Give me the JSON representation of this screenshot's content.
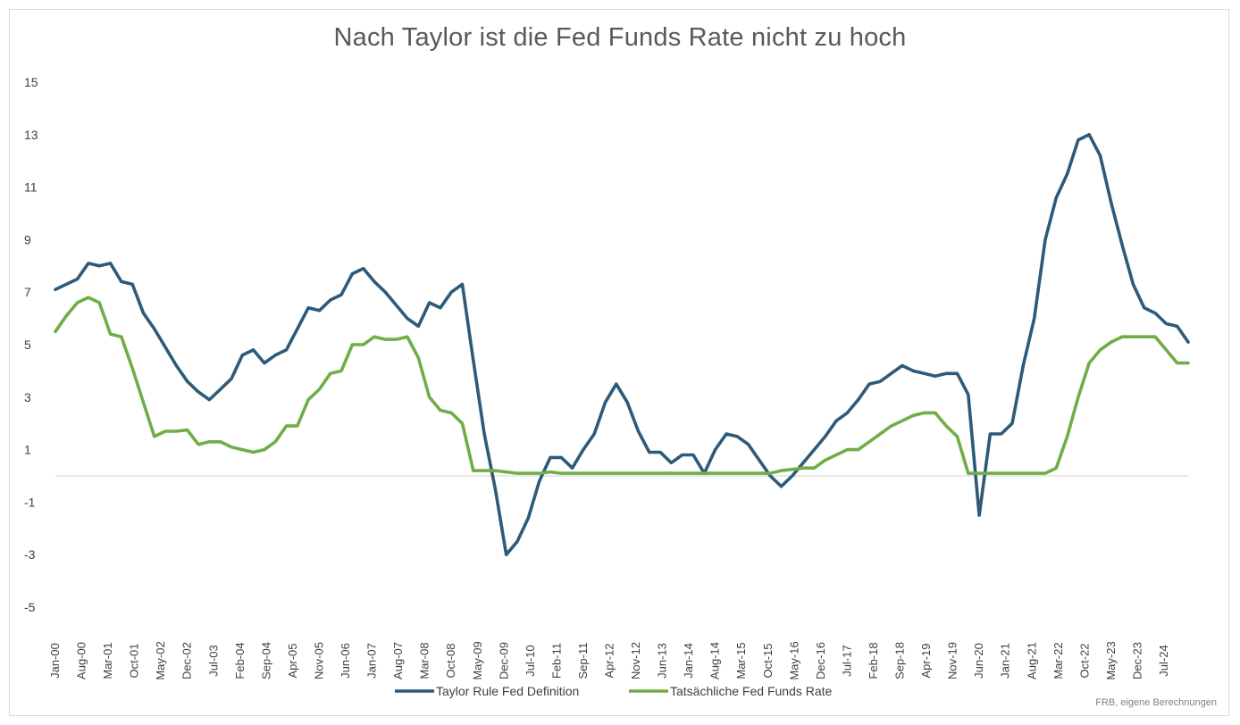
{
  "chart_data": {
    "type": "line",
    "title": "Nach Taylor ist die Fed Funds Rate nicht zu hoch",
    "source": "FRB, eigene Berechnungen",
    "xlabel": "",
    "ylabel": "",
    "ylim": [
      -5,
      15
    ],
    "yticks": [
      15,
      13,
      11,
      9,
      7,
      5,
      3,
      1,
      -1,
      -3,
      -5
    ],
    "x_tick_labels": [
      "Jan-00",
      "Aug-00",
      "Mar-01",
      "Oct-01",
      "May-02",
      "Dec-02",
      "Jul-03",
      "Feb-04",
      "Sep-04",
      "Apr-05",
      "Nov-05",
      "Jun-06",
      "Jan-07",
      "Aug-07",
      "Mar-08",
      "Oct-08",
      "May-09",
      "Dec-09",
      "Jul-10",
      "Feb-11",
      "Sep-11",
      "Apr-12",
      "Nov-12",
      "Jun-13",
      "Jan-14",
      "Aug-14",
      "Mar-15",
      "Oct-15",
      "May-16",
      "Dec-16",
      "Jul-17",
      "Feb-18",
      "Sep-18",
      "Apr-19",
      "Nov-19",
      "Jun-20",
      "Jan-21",
      "Aug-21",
      "Mar-22",
      "Oct-22",
      "May-23",
      "Dec-23",
      "Jul-24"
    ],
    "grid": false,
    "legend_position": "bottom",
    "colors": {
      "taylor": "#2e5a7a",
      "fed": "#70ad47",
      "axis": "#d9d9d9",
      "text": "#404040"
    },
    "series": [
      {
        "name": "Taylor Rule Fed Definition",
        "color": "#2e5a7a",
        "points": [
          [
            0,
            7.1
          ],
          [
            1,
            7.3
          ],
          [
            2,
            7.5
          ],
          [
            3,
            8.1
          ],
          [
            4,
            8.0
          ],
          [
            5,
            8.1
          ],
          [
            6,
            7.4
          ],
          [
            7,
            7.3
          ],
          [
            8,
            6.2
          ],
          [
            9,
            5.6
          ],
          [
            10,
            4.9
          ],
          [
            11,
            4.2
          ],
          [
            12,
            3.6
          ],
          [
            13,
            3.2
          ],
          [
            14,
            2.9
          ],
          [
            15,
            3.3
          ],
          [
            16,
            3.7
          ],
          [
            17,
            4.6
          ],
          [
            18,
            4.8
          ],
          [
            19,
            4.3
          ],
          [
            20,
            4.6
          ],
          [
            21,
            4.8
          ],
          [
            22,
            5.6
          ],
          [
            23,
            6.4
          ],
          [
            24,
            6.3
          ],
          [
            25,
            6.7
          ],
          [
            26,
            6.9
          ],
          [
            27,
            7.7
          ],
          [
            28,
            7.9
          ],
          [
            29,
            7.4
          ],
          [
            30,
            7.0
          ],
          [
            31,
            6.5
          ],
          [
            32,
            6.0
          ],
          [
            33,
            5.7
          ],
          [
            34,
            6.6
          ],
          [
            35,
            6.4
          ],
          [
            36,
            7.0
          ],
          [
            37,
            7.3
          ],
          [
            38,
            4.4
          ],
          [
            39,
            1.6
          ],
          [
            40,
            -0.5
          ],
          [
            41,
            -3.0
          ],
          [
            42,
            -2.5
          ],
          [
            43,
            -1.6
          ],
          [
            44,
            -0.2
          ],
          [
            45,
            0.7
          ],
          [
            46,
            0.7
          ],
          [
            47,
            0.3
          ],
          [
            48,
            1.0
          ],
          [
            49,
            1.6
          ],
          [
            50,
            2.8
          ],
          [
            51,
            3.5
          ],
          [
            52,
            2.8
          ],
          [
            53,
            1.7
          ],
          [
            54,
            0.9
          ],
          [
            55,
            0.9
          ],
          [
            56,
            0.5
          ],
          [
            57,
            0.8
          ],
          [
            58,
            0.8
          ],
          [
            59,
            0.1
          ],
          [
            60,
            1.0
          ],
          [
            61,
            1.6
          ],
          [
            62,
            1.5
          ],
          [
            63,
            1.2
          ],
          [
            64,
            0.6
          ],
          [
            65,
            0.0
          ],
          [
            66,
            -0.4
          ],
          [
            67,
            0.0
          ],
          [
            68,
            0.5
          ],
          [
            69,
            1.0
          ],
          [
            70,
            1.5
          ],
          [
            71,
            2.1
          ],
          [
            72,
            2.4
          ],
          [
            73,
            2.9
          ],
          [
            74,
            3.5
          ],
          [
            75,
            3.6
          ],
          [
            76,
            3.9
          ],
          [
            77,
            4.2
          ],
          [
            78,
            4.0
          ],
          [
            79,
            3.9
          ],
          [
            80,
            3.8
          ],
          [
            81,
            3.9
          ],
          [
            82,
            3.9
          ],
          [
            83,
            3.1
          ],
          [
            84,
            -1.5
          ],
          [
            85,
            1.6
          ],
          [
            86,
            1.6
          ],
          [
            87,
            2.0
          ],
          [
            88,
            4.2
          ],
          [
            89,
            6.0
          ],
          [
            90,
            9.0
          ],
          [
            91,
            10.6
          ],
          [
            92,
            11.5
          ],
          [
            93,
            12.8
          ],
          [
            94,
            13.0
          ],
          [
            95,
            12.2
          ],
          [
            96,
            10.4
          ],
          [
            97,
            8.8
          ],
          [
            98,
            7.3
          ],
          [
            99,
            6.4
          ],
          [
            100,
            6.2
          ],
          [
            101,
            5.8
          ],
          [
            102,
            5.7
          ],
          [
            103,
            5.1
          ]
        ]
      },
      {
        "name": "Tatsächliche Fed Funds Rate",
        "color": "#70ad47",
        "points": [
          [
            0,
            5.5
          ],
          [
            1,
            6.1
          ],
          [
            2,
            6.6
          ],
          [
            3,
            6.8
          ],
          [
            4,
            6.6
          ],
          [
            5,
            5.4
          ],
          [
            6,
            5.3
          ],
          [
            7,
            4.1
          ],
          [
            8,
            2.8
          ],
          [
            9,
            1.5
          ],
          [
            10,
            1.7
          ],
          [
            11,
            1.7
          ],
          [
            12,
            1.75
          ],
          [
            13,
            1.2
          ],
          [
            14,
            1.3
          ],
          [
            15,
            1.3
          ],
          [
            16,
            1.1
          ],
          [
            17,
            1.0
          ],
          [
            18,
            0.9
          ],
          [
            19,
            1.0
          ],
          [
            20,
            1.3
          ],
          [
            21,
            1.9
          ],
          [
            22,
            1.9
          ],
          [
            23,
            2.9
          ],
          [
            24,
            3.3
          ],
          [
            25,
            3.9
          ],
          [
            26,
            4.0
          ],
          [
            27,
            5.0
          ],
          [
            28,
            5.0
          ],
          [
            29,
            5.3
          ],
          [
            30,
            5.2
          ],
          [
            31,
            5.2
          ],
          [
            32,
            5.3
          ],
          [
            33,
            4.5
          ],
          [
            34,
            3.0
          ],
          [
            35,
            2.5
          ],
          [
            36,
            2.4
          ],
          [
            37,
            2.0
          ],
          [
            38,
            0.2
          ],
          [
            39,
            0.2
          ],
          [
            40,
            0.2
          ],
          [
            41,
            0.15
          ],
          [
            42,
            0.1
          ],
          [
            43,
            0.1
          ],
          [
            44,
            0.1
          ],
          [
            45,
            0.15
          ],
          [
            46,
            0.1
          ],
          [
            47,
            0.1
          ],
          [
            48,
            0.1
          ],
          [
            49,
            0.1
          ],
          [
            50,
            0.1
          ],
          [
            51,
            0.1
          ],
          [
            52,
            0.1
          ],
          [
            53,
            0.1
          ],
          [
            54,
            0.1
          ],
          [
            55,
            0.1
          ],
          [
            56,
            0.1
          ],
          [
            57,
            0.1
          ],
          [
            58,
            0.1
          ],
          [
            59,
            0.1
          ],
          [
            60,
            0.1
          ],
          [
            61,
            0.1
          ],
          [
            62,
            0.1
          ],
          [
            63,
            0.1
          ],
          [
            64,
            0.1
          ],
          [
            65,
            0.1
          ],
          [
            66,
            0.2
          ],
          [
            67,
            0.25
          ],
          [
            68,
            0.3
          ],
          [
            69,
            0.3
          ],
          [
            70,
            0.6
          ],
          [
            71,
            0.8
          ],
          [
            72,
            1.0
          ],
          [
            73,
            1.0
          ],
          [
            74,
            1.3
          ],
          [
            75,
            1.6
          ],
          [
            76,
            1.9
          ],
          [
            77,
            2.1
          ],
          [
            78,
            2.3
          ],
          [
            79,
            2.4
          ],
          [
            80,
            2.4
          ],
          [
            81,
            1.9
          ],
          [
            82,
            1.5
          ],
          [
            83,
            0.1
          ],
          [
            84,
            0.1
          ],
          [
            85,
            0.1
          ],
          [
            86,
            0.1
          ],
          [
            87,
            0.1
          ],
          [
            88,
            0.1
          ],
          [
            89,
            0.1
          ],
          [
            90,
            0.1
          ],
          [
            91,
            0.3
          ],
          [
            92,
            1.5
          ],
          [
            93,
            3.0
          ],
          [
            94,
            4.3
          ],
          [
            95,
            4.8
          ],
          [
            96,
            5.1
          ],
          [
            97,
            5.3
          ],
          [
            98,
            5.3
          ],
          [
            99,
            5.3
          ],
          [
            100,
            5.3
          ],
          [
            101,
            4.8
          ],
          [
            102,
            4.3
          ],
          [
            103,
            4.3
          ]
        ]
      }
    ]
  }
}
